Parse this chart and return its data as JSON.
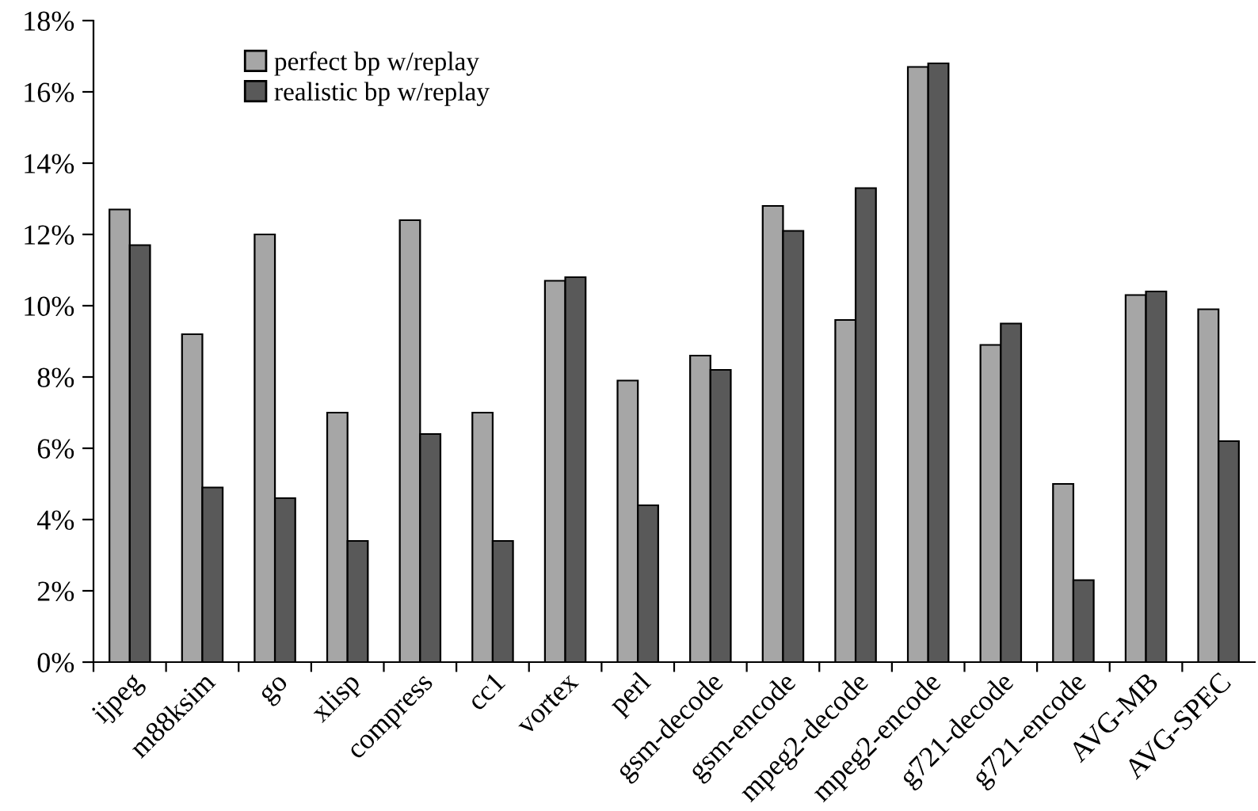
{
  "chart_data": {
    "type": "bar",
    "categories": [
      "ijpeg",
      "m88ksim",
      "go",
      "xlisp",
      "compress",
      "cc1",
      "vortex",
      "perl",
      "gsm-decode",
      "gsm-encode",
      "mpeg2-decode",
      "mpeg2-encode",
      "g721-decode",
      "g721-encode",
      "AVG-MB",
      "AVG-SPEC"
    ],
    "series": [
      {
        "name": "perfect bp w/replay",
        "color": "#a6a6a6",
        "values": [
          12.7,
          9.2,
          12.0,
          7.0,
          12.4,
          7.0,
          10.7,
          7.9,
          8.6,
          12.8,
          9.6,
          16.7,
          8.9,
          5.0,
          10.3,
          9.9
        ]
      },
      {
        "name": "realistic bp w/replay",
        "color": "#595959",
        "values": [
          11.7,
          4.9,
          4.6,
          3.4,
          6.4,
          3.4,
          10.8,
          4.4,
          8.2,
          12.1,
          13.3,
          16.8,
          9.5,
          2.3,
          10.4,
          6.2
        ]
      }
    ],
    "ylim": [
      0,
      18
    ],
    "yticks": [
      {
        "value": 0,
        "label": "0%"
      },
      {
        "value": 2,
        "label": "2%"
      },
      {
        "value": 4,
        "label": "4%"
      },
      {
        "value": 6,
        "label": "6%"
      },
      {
        "value": 8,
        "label": "8%"
      },
      {
        "value": 10,
        "label": "10%"
      },
      {
        "value": 12,
        "label": "12%"
      },
      {
        "value": 14,
        "label": "14%"
      },
      {
        "value": 16,
        "label": "16%"
      },
      {
        "value": 18,
        "label": "18%"
      }
    ],
    "grid": false,
    "legend": "top left"
  }
}
